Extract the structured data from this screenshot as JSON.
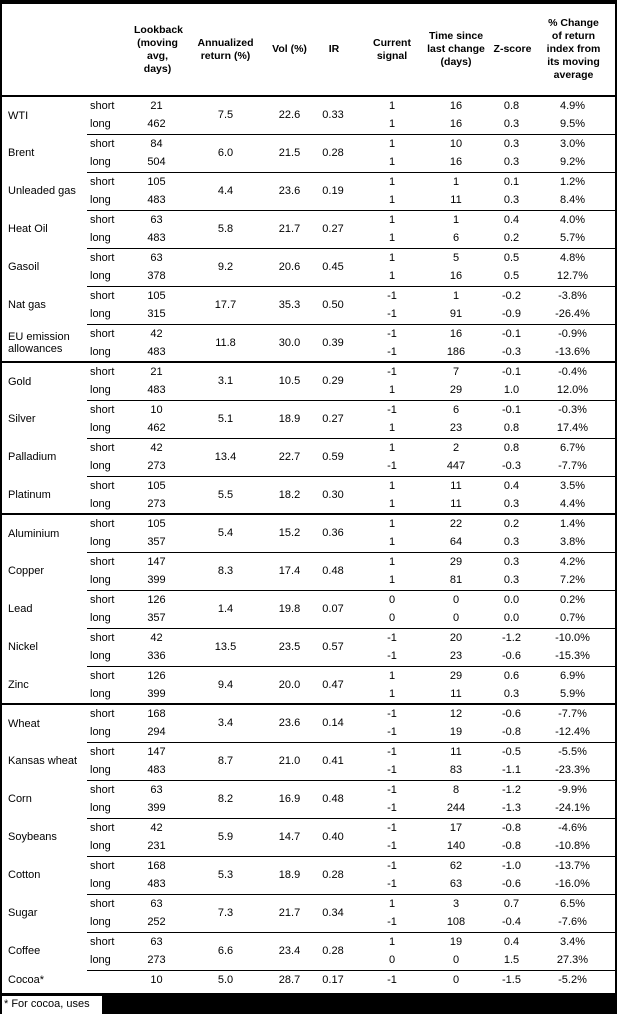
{
  "colors": {
    "border": "#000000",
    "background": "#ffffff",
    "redaction": "#000000",
    "text": "#000000"
  },
  "table": {
    "column_headers": {
      "name": "",
      "side": "",
      "lookback": "Lookback (moving avg, days)",
      "annualized_return": "Annualized return (%)",
      "vol": "Vol (%)",
      "ir": "IR",
      "current_signal": "Current signal",
      "time_since": "Time since last change (days)",
      "z_score": "Z-score",
      "pct_change": "% Change of return index from its moving average"
    },
    "footnote": "* For cocoa, uses",
    "commodities": [
      {
        "name": "WTI",
        "annualized_return": "7.5",
        "vol": "22.6",
        "ir": "0.33",
        "rows": [
          {
            "side": "short",
            "lookback": "21",
            "signal": "1",
            "time_since": "16",
            "z_score": "0.8",
            "pct_change": "4.9%"
          },
          {
            "side": "long",
            "lookback": "462",
            "signal": "1",
            "time_since": "16",
            "z_score": "0.3",
            "pct_change": "9.5%"
          }
        ]
      },
      {
        "name": "Brent",
        "annualized_return": "6.0",
        "vol": "21.5",
        "ir": "0.28",
        "rows": [
          {
            "side": "short",
            "lookback": "84",
            "signal": "1",
            "time_since": "10",
            "z_score": "0.3",
            "pct_change": "3.0%"
          },
          {
            "side": "long",
            "lookback": "504",
            "signal": "1",
            "time_since": "16",
            "z_score": "0.3",
            "pct_change": "9.2%"
          }
        ]
      },
      {
        "name": "Unleaded gas",
        "annualized_return": "4.4",
        "vol": "23.6",
        "ir": "0.19",
        "rows": [
          {
            "side": "short",
            "lookback": "105",
            "signal": "1",
            "time_since": "1",
            "z_score": "0.1",
            "pct_change": "1.2%"
          },
          {
            "side": "long",
            "lookback": "483",
            "signal": "1",
            "time_since": "11",
            "z_score": "0.3",
            "pct_change": "8.4%"
          }
        ]
      },
      {
        "name": "Heat Oil",
        "annualized_return": "5.8",
        "vol": "21.7",
        "ir": "0.27",
        "rows": [
          {
            "side": "short",
            "lookback": "63",
            "signal": "1",
            "time_since": "1",
            "z_score": "0.4",
            "pct_change": "4.0%"
          },
          {
            "side": "long",
            "lookback": "483",
            "signal": "1",
            "time_since": "6",
            "z_score": "0.2",
            "pct_change": "5.7%"
          }
        ]
      },
      {
        "name": "Gasoil",
        "annualized_return": "9.2",
        "vol": "20.6",
        "ir": "0.45",
        "rows": [
          {
            "side": "short",
            "lookback": "63",
            "signal": "1",
            "time_since": "5",
            "z_score": "0.5",
            "pct_change": "4.8%"
          },
          {
            "side": "long",
            "lookback": "378",
            "signal": "1",
            "time_since": "16",
            "z_score": "0.5",
            "pct_change": "12.7%"
          }
        ]
      },
      {
        "name": "Nat gas",
        "annualized_return": "17.7",
        "vol": "35.3",
        "ir": "0.50",
        "rows": [
          {
            "side": "short",
            "lookback": "105",
            "signal": "-1",
            "time_since": "1",
            "z_score": "-0.2",
            "pct_change": "-3.8%"
          },
          {
            "side": "long",
            "lookback": "315",
            "signal": "-1",
            "time_since": "91",
            "z_score": "-0.9",
            "pct_change": "-26.4%"
          }
        ]
      },
      {
        "name": "EU emission allowances",
        "annualized_return": "11.8",
        "vol": "30.0",
        "ir": "0.39",
        "rows": [
          {
            "side": "short",
            "lookback": "42",
            "signal": "-1",
            "time_since": "16",
            "z_score": "-0.1",
            "pct_change": "-0.9%"
          },
          {
            "side": "long",
            "lookback": "483",
            "signal": "-1",
            "time_since": "186",
            "z_score": "-0.3",
            "pct_change": "-13.6%"
          }
        ]
      },
      {
        "name": "Gold",
        "section_start": true,
        "annualized_return": "3.1",
        "vol": "10.5",
        "ir": "0.29",
        "rows": [
          {
            "side": "short",
            "lookback": "21",
            "signal": "-1",
            "time_since": "7",
            "z_score": "-0.1",
            "pct_change": "-0.4%"
          },
          {
            "side": "long",
            "lookback": "483",
            "signal": "1",
            "time_since": "29",
            "z_score": "1.0",
            "pct_change": "12.0%"
          }
        ]
      },
      {
        "name": "Silver",
        "annualized_return": "5.1",
        "vol": "18.9",
        "ir": "0.27",
        "rows": [
          {
            "side": "short",
            "lookback": "10",
            "signal": "-1",
            "time_since": "6",
            "z_score": "-0.1",
            "pct_change": "-0.3%"
          },
          {
            "side": "long",
            "lookback": "462",
            "signal": "1",
            "time_since": "23",
            "z_score": "0.8",
            "pct_change": "17.4%"
          }
        ]
      },
      {
        "name": "Palladium",
        "annualized_return": "13.4",
        "vol": "22.7",
        "ir": "0.59",
        "rows": [
          {
            "side": "short",
            "lookback": "42",
            "signal": "1",
            "time_since": "2",
            "z_score": "0.8",
            "pct_change": "6.7%"
          },
          {
            "side": "long",
            "lookback": "273",
            "signal": "-1",
            "time_since": "447",
            "z_score": "-0.3",
            "pct_change": "-7.7%"
          }
        ]
      },
      {
        "name": "Platinum",
        "annualized_return": "5.5",
        "vol": "18.2",
        "ir": "0.30",
        "rows": [
          {
            "side": "short",
            "lookback": "105",
            "signal": "1",
            "time_since": "11",
            "z_score": "0.4",
            "pct_change": "3.5%"
          },
          {
            "side": "long",
            "lookback": "273",
            "signal": "1",
            "time_since": "11",
            "z_score": "0.3",
            "pct_change": "4.4%"
          }
        ]
      },
      {
        "name": "Aluminium",
        "section_start": true,
        "annualized_return": "5.4",
        "vol": "15.2",
        "ir": "0.36",
        "rows": [
          {
            "side": "short",
            "lookback": "105",
            "signal": "1",
            "time_since": "22",
            "z_score": "0.2",
            "pct_change": "1.4%"
          },
          {
            "side": "long",
            "lookback": "357",
            "signal": "1",
            "time_since": "64",
            "z_score": "0.3",
            "pct_change": "3.8%"
          }
        ]
      },
      {
        "name": "Copper",
        "annualized_return": "8.3",
        "vol": "17.4",
        "ir": "0.48",
        "rows": [
          {
            "side": "short",
            "lookback": "147",
            "signal": "1",
            "time_since": "29",
            "z_score": "0.3",
            "pct_change": "4.2%"
          },
          {
            "side": "long",
            "lookback": "399",
            "signal": "1",
            "time_since": "81",
            "z_score": "0.3",
            "pct_change": "7.2%"
          }
        ]
      },
      {
        "name": "Lead",
        "annualized_return": "1.4",
        "vol": "19.8",
        "ir": "0.07",
        "rows": [
          {
            "side": "short",
            "lookback": "126",
            "signal": "0",
            "time_since": "0",
            "z_score": "0.0",
            "pct_change": "0.2%"
          },
          {
            "side": "long",
            "lookback": "357",
            "signal": "0",
            "time_since": "0",
            "z_score": "0.0",
            "pct_change": "0.7%"
          }
        ]
      },
      {
        "name": "Nickel",
        "annualized_return": "13.5",
        "vol": "23.5",
        "ir": "0.57",
        "rows": [
          {
            "side": "short",
            "lookback": "42",
            "signal": "-1",
            "time_since": "20",
            "z_score": "-1.2",
            "pct_change": "-10.0%"
          },
          {
            "side": "long",
            "lookback": "336",
            "signal": "-1",
            "time_since": "23",
            "z_score": "-0.6",
            "pct_change": "-15.3%"
          }
        ]
      },
      {
        "name": "Zinc",
        "annualized_return": "9.4",
        "vol": "20.0",
        "ir": "0.47",
        "rows": [
          {
            "side": "short",
            "lookback": "126",
            "signal": "1",
            "time_since": "29",
            "z_score": "0.6",
            "pct_change": "6.9%"
          },
          {
            "side": "long",
            "lookback": "399",
            "signal": "1",
            "time_since": "11",
            "z_score": "0.3",
            "pct_change": "5.9%"
          }
        ]
      },
      {
        "name": "Wheat",
        "section_start": true,
        "annualized_return": "3.4",
        "vol": "23.6",
        "ir": "0.14",
        "rows": [
          {
            "side": "short",
            "lookback": "168",
            "signal": "-1",
            "time_since": "12",
            "z_score": "-0.6",
            "pct_change": "-7.7%"
          },
          {
            "side": "long",
            "lookback": "294",
            "signal": "-1",
            "time_since": "19",
            "z_score": "-0.8",
            "pct_change": "-12.4%"
          }
        ]
      },
      {
        "name": "Kansas wheat",
        "annualized_return": "8.7",
        "vol": "21.0",
        "ir": "0.41",
        "rows": [
          {
            "side": "short",
            "lookback": "147",
            "signal": "-1",
            "time_since": "11",
            "z_score": "-0.5",
            "pct_change": "-5.5%"
          },
          {
            "side": "long",
            "lookback": "483",
            "signal": "-1",
            "time_since": "83",
            "z_score": "-1.1",
            "pct_change": "-23.3%"
          }
        ]
      },
      {
        "name": "Corn",
        "annualized_return": "8.2",
        "vol": "16.9",
        "ir": "0.48",
        "rows": [
          {
            "side": "short",
            "lookback": "63",
            "signal": "-1",
            "time_since": "8",
            "z_score": "-1.2",
            "pct_change": "-9.9%"
          },
          {
            "side": "long",
            "lookback": "399",
            "signal": "-1",
            "time_since": "244",
            "z_score": "-1.3",
            "pct_change": "-24.1%"
          }
        ]
      },
      {
        "name": "Soybeans",
        "annualized_return": "5.9",
        "vol": "14.7",
        "ir": "0.40",
        "rows": [
          {
            "side": "short",
            "lookback": "42",
            "signal": "-1",
            "time_since": "17",
            "z_score": "-0.8",
            "pct_change": "-4.6%"
          },
          {
            "side": "long",
            "lookback": "231",
            "signal": "-1",
            "time_since": "140",
            "z_score": "-0.8",
            "pct_change": "-10.8%"
          }
        ]
      },
      {
        "name": "Cotton",
        "annualized_return": "5.3",
        "vol": "18.9",
        "ir": "0.28",
        "rows": [
          {
            "side": "short",
            "lookback": "168",
            "signal": "-1",
            "time_since": "62",
            "z_score": "-1.0",
            "pct_change": "-13.7%"
          },
          {
            "side": "long",
            "lookback": "483",
            "signal": "-1",
            "time_since": "63",
            "z_score": "-0.6",
            "pct_change": "-16.0%"
          }
        ]
      },
      {
        "name": "Sugar",
        "annualized_return": "7.3",
        "vol": "21.7",
        "ir": "0.34",
        "rows": [
          {
            "side": "short",
            "lookback": "63",
            "signal": "1",
            "time_since": "3",
            "z_score": "0.7",
            "pct_change": "6.5%"
          },
          {
            "side": "long",
            "lookback": "252",
            "signal": "-1",
            "time_since": "108",
            "z_score": "-0.4",
            "pct_change": "-7.6%"
          }
        ]
      },
      {
        "name": "Coffee",
        "annualized_return": "6.6",
        "vol": "23.4",
        "ir": "0.28",
        "rows": [
          {
            "side": "short",
            "lookback": "63",
            "signal": "1",
            "time_since": "19",
            "z_score": "0.4",
            "pct_change": "3.4%"
          },
          {
            "side": "long",
            "lookback": "273",
            "signal": "0",
            "time_since": "0",
            "z_score": "1.5",
            "pct_change": "27.3%"
          }
        ]
      },
      {
        "name": "Cocoa*",
        "annualized_return": "5.0",
        "vol": "28.7",
        "ir": "0.17",
        "rows": [
          {
            "side": "",
            "lookback": "10",
            "signal": "-1",
            "time_since": "0",
            "z_score": "-1.5",
            "pct_change": "-5.2%"
          }
        ]
      }
    ]
  }
}
